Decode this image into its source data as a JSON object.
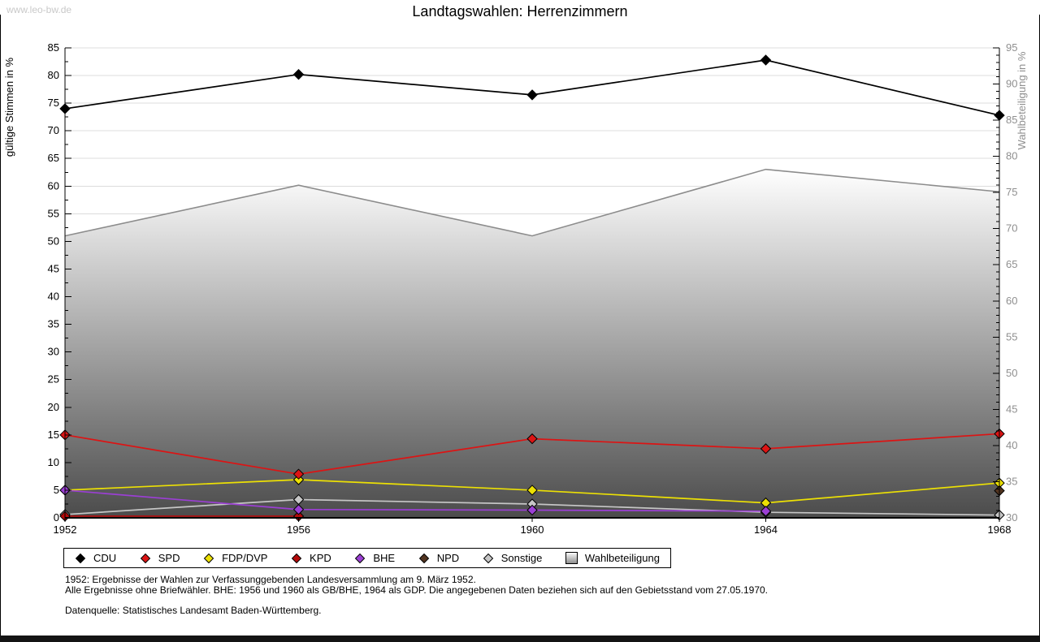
{
  "watermark": "www.leo-bw.de",
  "title": "Landtagswahlen: Herrenzimmern",
  "footnotes": [
    "1952: Ergebnisse der Wahlen zur Verfassunggebenden Landesversammlung am 9. März 1952.",
    "Alle Ergebnisse ohne Briefwähler. BHE: 1956 und 1960 als GB/BHE, 1964 als GDP. Die angegebenen Daten beziehen sich auf den Gebietsstand vom 27.05.1970.",
    "Datenquelle: Statistisches Landesamt Baden-Württemberg."
  ],
  "colors": {
    "grid": "#dcdcdc",
    "axis": "#000000",
    "right_axis_text": "#8f8f8f",
    "area_stroke": "#8c8c8c",
    "area_fill_top": "#ffffff",
    "area_fill_bottom": "#4b4b4b",
    "watermark": "#c9c9c9"
  },
  "chart_data": {
    "type": "line",
    "title": "Landtagswahlen: Herrenzimmern",
    "x_categories": [
      "1952",
      "1956",
      "1960",
      "1964",
      "1968"
    ],
    "left_axis": {
      "label": "gültige Stimmen in %",
      "min": 0,
      "max": 85,
      "major_step": 5,
      "minor_step": 2.5
    },
    "right_axis": {
      "label": "Wahlbeteiligung in %",
      "min": 30,
      "max": 95,
      "major_step": 5,
      "minor_step": 1
    },
    "grid": true,
    "legend_position": "bottom",
    "series": [
      {
        "name": "CDU",
        "color": "#000000",
        "axis": "left",
        "marker": "diamond",
        "draw_order": 7,
        "values": [
          74.0,
          80.2,
          76.5,
          82.8,
          72.8
        ]
      },
      {
        "name": "SPD",
        "color": "#dc1414",
        "axis": "left",
        "marker": "diamond",
        "draw_order": 6,
        "values": [
          15.0,
          7.9,
          14.3,
          12.5,
          15.2
        ]
      },
      {
        "name": "FDP/DVP",
        "color": "#ece004",
        "axis": "left",
        "marker": "diamond",
        "draw_order": 3,
        "values": [
          5.0,
          6.9,
          5.0,
          2.7,
          6.3
        ]
      },
      {
        "name": "KPD",
        "color": "#b40a0a",
        "axis": "left",
        "marker": "diamond",
        "draw_order": 2,
        "values": [
          0.3,
          0.3,
          null,
          null,
          null
        ]
      },
      {
        "name": "BHE",
        "color": "#9b3fd4",
        "axis": "left",
        "marker": "diamond",
        "draw_order": 4,
        "values": [
          5.0,
          1.5,
          1.4,
          1.2,
          null
        ]
      },
      {
        "name": "NPD",
        "color": "#523420",
        "axis": "left",
        "marker": "diamond",
        "draw_order": 5,
        "values": [
          null,
          null,
          null,
          null,
          4.9
        ]
      },
      {
        "name": "Sonstige",
        "color": "#c6c6c6",
        "axis": "left",
        "marker": "diamond",
        "draw_order": 1,
        "values": [
          0.6,
          3.3,
          2.5,
          1.0,
          0.5
        ]
      },
      {
        "name": "Wahlbeteiligung",
        "color": "#8c8c8c",
        "axis": "right",
        "marker": "none",
        "style": "area",
        "draw_order": 0,
        "values": [
          69.0,
          76.0,
          69.0,
          78.2,
          75.1
        ]
      }
    ]
  }
}
